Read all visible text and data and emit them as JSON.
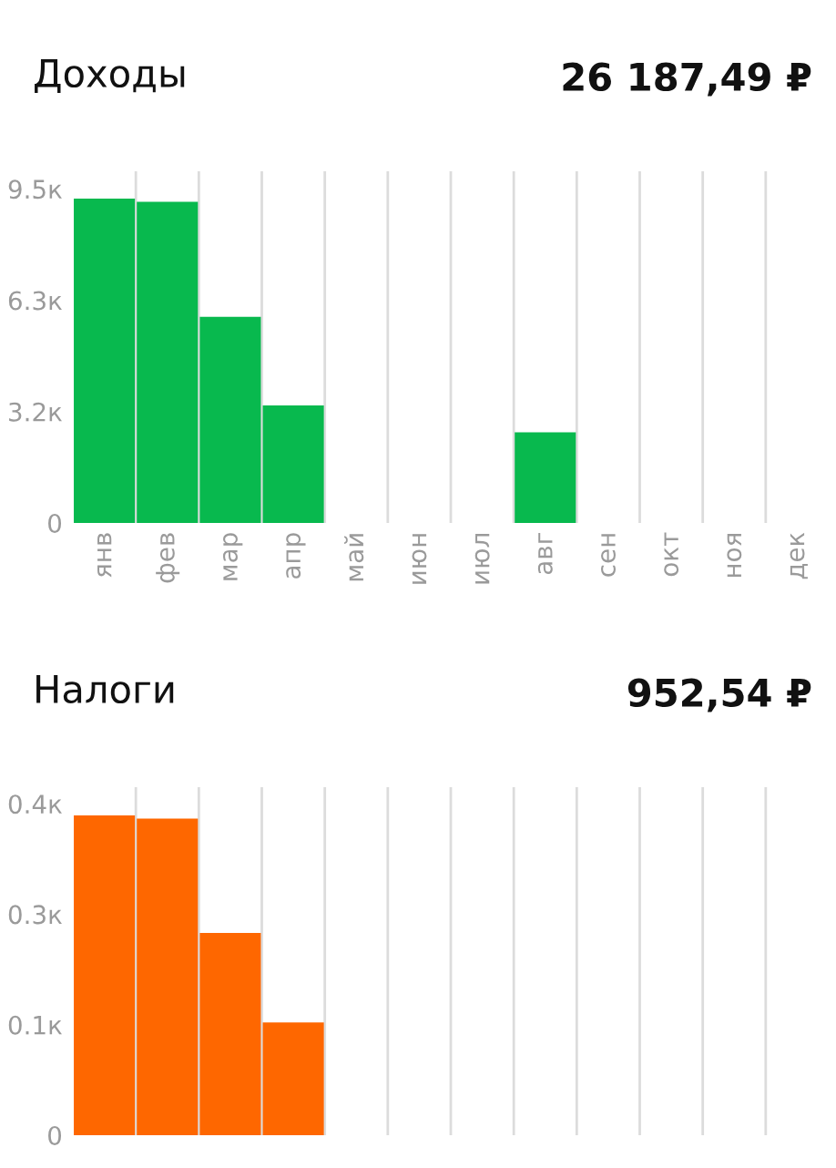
{
  "chart_data": [
    {
      "type": "bar",
      "title": "Доходы",
      "subtitle": "26 187,49 ₽",
      "categories": [
        "янв",
        "фев",
        "мар",
        "апр",
        "май",
        "июн",
        "июл",
        "авг",
        "сен",
        "окт",
        "ноя",
        "дек"
      ],
      "values": [
        9.22,
        9.13,
        5.86,
        3.34,
        null,
        null,
        null,
        2.58,
        null,
        null,
        null,
        null
      ],
      "color": "#08b94e",
      "ylim": [
        0,
        10
      ],
      "yticks": [
        0,
        {
          "value": 3.167,
          "label": "3.2к"
        },
        {
          "value": 6.333,
          "label": "6.3к"
        },
        {
          "value": 9.5,
          "label": "9.5к"
        }
      ],
      "grid": "x"
    },
    {
      "type": "bar",
      "title": "Налоги",
      "subtitle": "952,54 ₽",
      "categories": [
        null,
        null,
        null,
        null,
        null,
        null,
        null,
        null,
        null,
        null,
        null,
        null
      ],
      "values": [
        0.386,
        0.382,
        0.244,
        0.136,
        null,
        null,
        null,
        null,
        null,
        null,
        null,
        null
      ],
      "color": "#fe6700",
      "ylim": [
        0,
        0.42
      ],
      "yticks": [
        0,
        {
          "value": 0.1333,
          "label": "0.1к"
        },
        {
          "value": 0.2667,
          "label": "0.3к"
        },
        {
          "value": 0.4,
          "label": "0.4к"
        }
      ],
      "grid": "x"
    }
  ]
}
